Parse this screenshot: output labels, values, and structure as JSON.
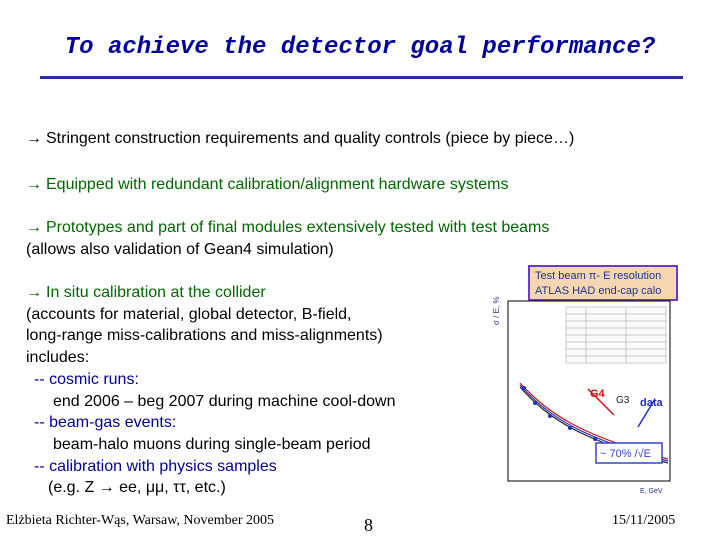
{
  "title": "To achieve the detector goal performance?",
  "bullets": [
    {
      "color": "#000000",
      "lines": [
        "Stringent  construction requirements and quality controls (piece by piece…)"
      ]
    },
    {
      "color": "#006600",
      "lines": [
        "Equipped with redundant calibration/alignment hardware systems"
      ]
    },
    {
      "color": "#006600",
      "lines": [
        "Prototypes and part of final modules extensively tested with test beams",
        "(allows also validation of Gean4 simulation)"
      ]
    }
  ],
  "insitu": {
    "heading": "In situ calibration at the collider",
    "lines": [
      "(accounts for material, global detector, B-field,",
      "long-range miss-calibrations and miss-alignments)",
      "includes:"
    ],
    "cosmic_label": "-- cosmic runs:",
    "cosmic_detail": "end 2006 – beg 2007 during machine cool-down",
    "beamgas_label": "-- beam-gas events:",
    "beamgas_detail": "beam-halo muons during single-beam period",
    "physics_label": "-- calibration with physics samples",
    "physics_detail": "(e.g. Z → ee, μμ, ττ, etc.)"
  },
  "arrow_glyph": "→",
  "figure": {
    "banner_line1": "Test beam π- E resolution",
    "banner_line2": "ATLAS HAD end-cap calo",
    "y_axis_label": "σ / E, %",
    "label_g4": "G4",
    "label_g3": "G3",
    "label_data": "data",
    "formula": "~ 70% /√E",
    "x_axis_label": "E, GeV",
    "colors": {
      "data": "#1f2fbf",
      "g4": "#cc1111",
      "g3": "#222222",
      "formula_box": "#3344cc"
    }
  },
  "footer": {
    "author": "Elżbieta Richter-Wąs, Warsaw, November 2005",
    "page_number": "8",
    "date": "15/11/2005"
  }
}
